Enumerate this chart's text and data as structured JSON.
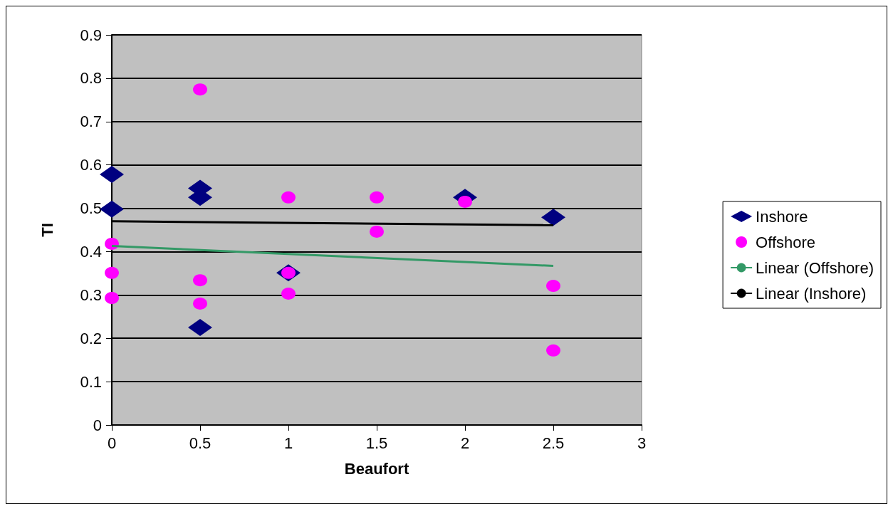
{
  "chart_data": {
    "type": "scatter",
    "xlabel": "Beaufort",
    "ylabel": "TI",
    "xlim": [
      0,
      3
    ],
    "xticks": [
      0,
      0.5,
      1,
      1.5,
      2,
      2.5,
      3
    ],
    "ylim": [
      0,
      0.9
    ],
    "yticks": [
      0,
      0.1,
      0.2,
      0.3,
      0.4,
      0.5,
      0.6,
      0.7,
      0.8,
      0.9
    ],
    "grid": "y",
    "legend": "right",
    "series": [
      {
        "name": "Inshore",
        "color": "#000080",
        "marker": "diamond",
        "x": [
          0,
          0,
          0.5,
          0.5,
          0.5,
          1,
          2,
          2.5
        ],
        "values": [
          0.578,
          0.498,
          0.546,
          0.525,
          0.225,
          0.351,
          0.525,
          0.479
        ]
      },
      {
        "name": "Offshore",
        "color": "#ff00ff",
        "marker": "circle",
        "x": [
          0,
          0,
          0,
          0.5,
          0.5,
          0.5,
          1,
          1,
          1,
          1.5,
          1.5,
          2,
          2.5,
          2.5
        ],
        "values": [
          0.418,
          0.351,
          0.293,
          0.774,
          0.334,
          0.28,
          0.525,
          0.351,
          0.303,
          0.525,
          0.446,
          0.515,
          0.321,
          0.172
        ]
      },
      {
        "name": "Linear (Offshore)",
        "type": "line",
        "color": "#339966",
        "marker": "none",
        "line_style": "solid",
        "x": [
          0,
          2.5
        ],
        "values": [
          0.413,
          0.367
        ]
      },
      {
        "name": "Linear (Inshore)",
        "type": "line",
        "color": "#000000",
        "marker": "none",
        "line_style": "solid",
        "x": [
          0,
          2.5
        ],
        "values": [
          0.47,
          0.461
        ]
      }
    ]
  }
}
